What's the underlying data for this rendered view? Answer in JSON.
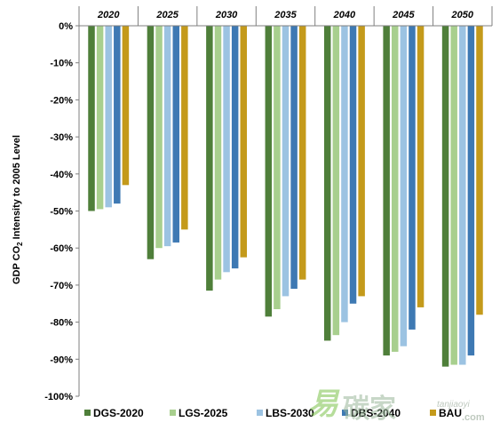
{
  "chart_data": {
    "type": "bar",
    "ylabel_main": "GDP CO",
    "ylabel_sub": "2",
    "ylabel_rest": " Intensity to 2005 Level",
    "categories": [
      "2020",
      "2025",
      "2030",
      "2035",
      "2040",
      "2045",
      "2050"
    ],
    "ylim": [
      -100,
      0
    ],
    "y_ticks": [
      0,
      -10,
      -20,
      -30,
      -40,
      -50,
      -60,
      -70,
      -80,
      -90,
      -100
    ],
    "y_tick_labels": [
      "0%",
      "-10%",
      "-20%",
      "-30%",
      "-40%",
      "-50%",
      "-60%",
      "-70%",
      "-80%",
      "-90%",
      "-100%"
    ],
    "category_axis_position": "top",
    "legend_position": "bottom",
    "grid": false,
    "series": [
      {
        "name": "DGS-2020",
        "color": "#4f7f3a",
        "values": [
          -50,
          -63,
          -71.5,
          -78.5,
          -85,
          -89,
          -92
        ]
      },
      {
        "name": "LGS-2025",
        "color": "#a8cf8e",
        "values": [
          -49.5,
          -60,
          -68.5,
          -76.5,
          -83.5,
          -88,
          -91.5
        ]
      },
      {
        "name": "LBS-2030",
        "color": "#9cc3e2",
        "values": [
          -49,
          -59.5,
          -66.5,
          -73,
          -80,
          -86.5,
          -91.5
        ]
      },
      {
        "name": "DBS-2040",
        "color": "#3e79b3",
        "values": [
          -48,
          -58.5,
          -65.5,
          -71,
          -75,
          -82,
          -89
        ]
      },
      {
        "name": "BAU",
        "color": "#c49a1b",
        "values": [
          -43,
          -55,
          -62.5,
          -68.5,
          -73,
          -76,
          -78
        ]
      }
    ]
  },
  "watermark": {
    "glyph_1": "易",
    "glyph_2": "碳家",
    "latin": "tanjiaoyi",
    "domain": ".com"
  }
}
